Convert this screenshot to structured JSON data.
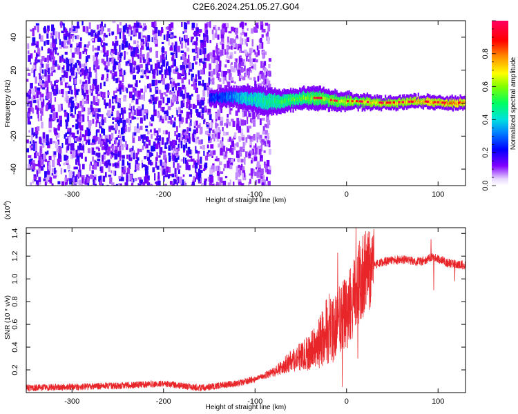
{
  "title": "C2E6.2024.251.05.27.G04",
  "chart_data": [
    {
      "type": "heatmap",
      "title": "C2E6.2024.251.05.27.G04",
      "xlabel": "Height of straight line (km)",
      "ylabel": "Frequency (Hz)",
      "xlim": [
        -350,
        130
      ],
      "ylim": [
        -50,
        50
      ],
      "x_ticks": [
        -300,
        -200,
        -100,
        0,
        100
      ],
      "y_ticks": [
        -40,
        -20,
        0,
        20,
        40
      ],
      "colorbar": {
        "label": "Normalized spectral amplitude",
        "range": [
          0.0,
          1.0
        ],
        "ticks": [
          0.0,
          0.2,
          0.4,
          0.6,
          0.8
        ],
        "colors": [
          "#ffffff",
          "#7f00ff",
          "#0000ff",
          "#00c0ff",
          "#00ff80",
          "#80ff00",
          "#ffff00",
          "#ff8000",
          "#ff0000",
          "#ff0080"
        ]
      },
      "noise_region": {
        "x_range": [
          -350,
          -100
        ],
        "freq_range": [
          -50,
          50
        ],
        "amplitude": [
          0.05,
          0.2
        ]
      },
      "signal_ridge": [
        {
          "x": -150,
          "f_center": 3,
          "half_width": 2,
          "amplitude": 0.15
        },
        {
          "x": -130,
          "f_center": 4,
          "half_width": 2.5,
          "amplitude": 0.25
        },
        {
          "x": -110,
          "f_center": 3,
          "half_width": 3,
          "amplitude": 0.4
        },
        {
          "x": -90,
          "f_center": 1,
          "half_width": 4,
          "amplitude": 0.5
        },
        {
          "x": -70,
          "f_center": 1,
          "half_width": 3,
          "amplitude": 0.55
        },
        {
          "x": -50,
          "f_center": 3,
          "half_width": 3,
          "amplitude": 0.6
        },
        {
          "x": -30,
          "f_center": 3,
          "half_width": 3,
          "amplitude": 0.65
        },
        {
          "x": -10,
          "f_center": 1,
          "half_width": 2.5,
          "amplitude": 0.7
        },
        {
          "x": 10,
          "f_center": 1,
          "half_width": 2,
          "amplitude": 0.75
        },
        {
          "x": 40,
          "f_center": 0,
          "half_width": 1.5,
          "amplitude": 0.8
        },
        {
          "x": 80,
          "f_center": 1,
          "half_width": 1.5,
          "amplitude": 0.85
        },
        {
          "x": 110,
          "f_center": 0,
          "half_width": 1.5,
          "amplitude": 0.9
        },
        {
          "x": 130,
          "f_center": 0,
          "half_width": 1.5,
          "amplitude": 0.9
        }
      ]
    },
    {
      "type": "line",
      "xlabel": "Height of straight line (km)",
      "ylabel": "SNR (10 * v/v)",
      "y_scale_label": "(x10",
      "y_scale_exponent": "4",
      "y_scale_suffix": ")",
      "xlim": [
        -350,
        130
      ],
      "ylim": [
        0.0,
        1.45
      ],
      "x_ticks": [
        -300,
        -200,
        -100,
        0,
        100
      ],
      "y_ticks": [
        0.2,
        0.4,
        0.6,
        0.8,
        1.0,
        1.2,
        1.4
      ],
      "color": "#e8262a",
      "series": [
        {
          "name": "SNR",
          "x": [
            -350,
            -300,
            -250,
            -200,
            -160,
            -120,
            -100,
            -80,
            -60,
            -40,
            -30,
            -20,
            -10,
            0,
            10,
            20,
            30,
            40,
            60,
            80,
            90,
            95,
            110,
            120,
            130
          ],
          "y": [
            0.04,
            0.05,
            0.06,
            0.08,
            0.04,
            0.08,
            0.12,
            0.18,
            0.28,
            0.35,
            0.45,
            0.55,
            0.62,
            0.7,
            0.9,
            1.05,
            1.12,
            1.15,
            1.17,
            1.15,
            1.18,
            1.2,
            1.14,
            1.13,
            1.12
          ]
        }
      ],
      "spikes": [
        {
          "x": -10,
          "y": 1.23
        },
        {
          "x": -5,
          "y": 0.05
        },
        {
          "x": 10,
          "y": 1.47
        },
        {
          "x": 12,
          "y": 0.3
        },
        {
          "x": 92,
          "y": 1.35
        },
        {
          "x": 95,
          "y": 0.9
        },
        {
          "x": 118,
          "y": 0.98
        }
      ]
    }
  ]
}
